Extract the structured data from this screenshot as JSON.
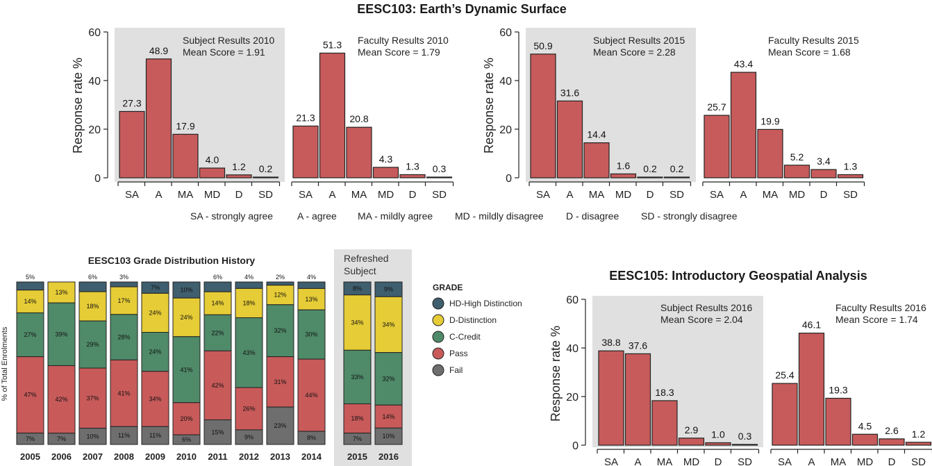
{
  "header": {
    "title": "EESC103: Earth’s Dynamic Surface"
  },
  "legend_abbrev": [
    "SA - strongly agree",
    "A - agree",
    "MA - mildly agree",
    "MD - mildly disagree",
    "D - disagree",
    "SD - strongly disagree"
  ],
  "colors": {
    "bar": "#c75b5b",
    "panel": "#e0e0e0",
    "HD": "#3f5e6e",
    "D": "#e6cc36",
    "C": "#4f8a69",
    "P": "#c85a5a",
    "F": "#6e6e6e"
  },
  "chart_data": [
    {
      "id": "s2010",
      "type": "bar",
      "categories": [
        "SA",
        "A",
        "MA",
        "MD",
        "D",
        "SD"
      ],
      "values": [
        27.3,
        48.9,
        17.9,
        4.0,
        1.2,
        0.2
      ],
      "labels": [
        "27.3",
        "48.9",
        "17.9",
        "4.0",
        "1.2",
        "0.2"
      ],
      "annotation": [
        "Subject Results 2010",
        "Mean Score = 1.91"
      ],
      "ylabel": "Response rate %",
      "yticks": [
        "0",
        "20",
        "40",
        "60"
      ],
      "ylim": [
        0,
        60
      ],
      "highlighted": true
    },
    {
      "id": "f2010",
      "type": "bar",
      "categories": [
        "SA",
        "A",
        "MA",
        "MD",
        "D",
        "SD"
      ],
      "values": [
        21.3,
        51.3,
        20.8,
        4.3,
        1.3,
        0.3
      ],
      "labels": [
        "21.3",
        "51.3",
        "20.8",
        "4.3",
        "1.3",
        "0.3"
      ],
      "annotation": [
        "Faculty Results 2010",
        "Mean Score = 1.79"
      ],
      "ylim": [
        0,
        60
      ],
      "highlighted": false
    },
    {
      "id": "s2015",
      "type": "bar",
      "categories": [
        "SA",
        "A",
        "MA",
        "MD",
        "D",
        "SD"
      ],
      "values": [
        50.9,
        31.6,
        14.4,
        1.6,
        0.2,
        0.2
      ],
      "labels": [
        "50.9",
        "31.6",
        "14.4",
        "1.6",
        "0.2",
        "0.2"
      ],
      "annotation": [
        "Subject Results 2015",
        "Mean Score = 2.28"
      ],
      "ylabel": "Response rate %",
      "yticks": [
        "0",
        "20",
        "40",
        "60"
      ],
      "ylim": [
        0,
        60
      ],
      "highlighted": true
    },
    {
      "id": "f2015",
      "type": "bar",
      "categories": [
        "SA",
        "A",
        "MA",
        "MD",
        "D",
        "SD"
      ],
      "values": [
        25.7,
        43.4,
        19.9,
        5.2,
        3.4,
        1.3
      ],
      "labels": [
        "25.7",
        "43.4",
        "19.9",
        "5.2",
        "3.4",
        "1.3"
      ],
      "annotation": [
        "Faculty Results 2015",
        "Mean Score = 1.68"
      ],
      "ylim": [
        0,
        60
      ],
      "highlighted": false
    },
    {
      "id": "grades",
      "type": "bar",
      "stacked": true,
      "title": "EESC103 Grade Distribution History",
      "ylabel": "% of Total Enrolments",
      "refreshed_label": [
        "Refreshed",
        "Subject"
      ],
      "legend_title": "GRADE",
      "legend": [
        {
          "key": "HD",
          "label": "HD-High Distinction"
        },
        {
          "key": "D",
          "label": "D-Distinction"
        },
        {
          "key": "C",
          "label": "C-Credit"
        },
        {
          "key": "P",
          "label": "Pass"
        },
        {
          "key": "F",
          "label": "Fail"
        }
      ],
      "years": [
        {
          "year": "2005",
          "HD": 5,
          "D": 14,
          "C": 27,
          "P": 47,
          "F": 7,
          "labels": {
            "HD": "5%",
            "D": "14%",
            "C": "27%",
            "P": "47%",
            "F": "7%"
          },
          "hd_label_above": true
        },
        {
          "year": "2006",
          "HD": 0,
          "D": 13,
          "C": 39,
          "P": 42,
          "F": 7,
          "labels": {
            "HD": "",
            "D": "13%",
            "C": "39%",
            "P": "42%",
            "F": "7%"
          },
          "hd_label_above": false
        },
        {
          "year": "2007",
          "HD": 6,
          "D": 18,
          "C": 29,
          "P": 37,
          "F": 10,
          "labels": {
            "HD": "6%",
            "D": "18%",
            "C": "29%",
            "P": "37%",
            "F": "10%"
          },
          "hd_label_above": true
        },
        {
          "year": "2008",
          "HD": 3,
          "D": 17,
          "C": 28,
          "P": 41,
          "F": 11,
          "labels": {
            "HD": "3%",
            "D": "17%",
            "C": "28%",
            "P": "41%",
            "F": "11%"
          },
          "hd_label_above": true
        },
        {
          "year": "2009",
          "HD": 7,
          "D": 24,
          "C": 24,
          "P": 34,
          "F": 11,
          "labels": {
            "HD": "7%",
            "D": "24%",
            "C": "24%",
            "P": "34%",
            "F": "11%"
          },
          "hd_label_above": false
        },
        {
          "year": "2010",
          "HD": 10,
          "D": 24,
          "C": 41,
          "P": 20,
          "F": 6,
          "labels": {
            "HD": "10%",
            "D": "24%",
            "C": "41%",
            "P": "20%",
            "F": "6%"
          },
          "hd_label_above": false
        },
        {
          "year": "2011",
          "HD": 6,
          "D": 14,
          "C": 22,
          "P": 42,
          "F": 15,
          "labels": {
            "HD": "6%",
            "D": "14%",
            "C": "22%",
            "P": "42%",
            "F": "15%"
          },
          "hd_label_above": true
        },
        {
          "year": "2012",
          "HD": 4,
          "D": 18,
          "C": 43,
          "P": 26,
          "F": 9,
          "labels": {
            "HD": "4%",
            "D": "18%",
            "C": "43%",
            "P": "26%",
            "F": "9%"
          },
          "hd_label_above": true
        },
        {
          "year": "2013",
          "HD": 2,
          "D": 12,
          "C": 32,
          "P": 31,
          "F": 23,
          "labels": {
            "HD": "2%",
            "D": "12%",
            "C": "32%",
            "P": "31%",
            "F": "23%"
          },
          "hd_label_above": true
        },
        {
          "year": "2014",
          "HD": 4,
          "D": 13,
          "C": 30,
          "P": 44,
          "F": 8,
          "labels": {
            "HD": "4%",
            "D": "13%",
            "C": "30%",
            "P": "44%",
            "F": "8%"
          },
          "hd_label_above": true
        },
        {
          "year": "2015",
          "HD": 8,
          "D": 34,
          "C": 33,
          "P": 18,
          "F": 7,
          "labels": {
            "HD": "8%",
            "D": "34%",
            "C": "33%",
            "P": "18%",
            "F": "7%"
          },
          "hd_label_above": false
        },
        {
          "year": "2016",
          "HD": 9,
          "D": 34,
          "C": 32,
          "P": 14,
          "F": 10,
          "labels": {
            "HD": "9%",
            "D": "34%",
            "C": "32%",
            "P": "14%",
            "F": "10%"
          },
          "hd_label_above": false
        }
      ]
    },
    {
      "id": "s2016",
      "type": "bar",
      "title": "EESC105: Introductory Geospatial Analysis",
      "categories": [
        "SA",
        "A",
        "MA",
        "MD",
        "D",
        "SD"
      ],
      "values": [
        38.8,
        37.6,
        18.3,
        2.9,
        1.0,
        0.3
      ],
      "labels": [
        "38.8",
        "37.6",
        "18.3",
        "2.9",
        "1.0",
        "0.3"
      ],
      "annotation": [
        "Subject Results 2016",
        "Mean Score = 2.04"
      ],
      "ylabel": "Response rate %",
      "yticks": [
        "0",
        "20",
        "40",
        "60"
      ],
      "ylim": [
        0,
        60
      ],
      "highlighted": true
    },
    {
      "id": "f2016",
      "type": "bar",
      "categories": [
        "SA",
        "A",
        "MA",
        "MD",
        "D",
        "SD"
      ],
      "values": [
        25.4,
        46.1,
        19.3,
        4.5,
        2.6,
        1.2
      ],
      "labels": [
        "25.4",
        "46.1",
        "19.3",
        "4.5",
        "2.6",
        "1.2"
      ],
      "annotation": [
        "Faculty Results 2016",
        "Mean Score = 1.74"
      ],
      "ylim": [
        0,
        60
      ],
      "highlighted": false
    }
  ]
}
